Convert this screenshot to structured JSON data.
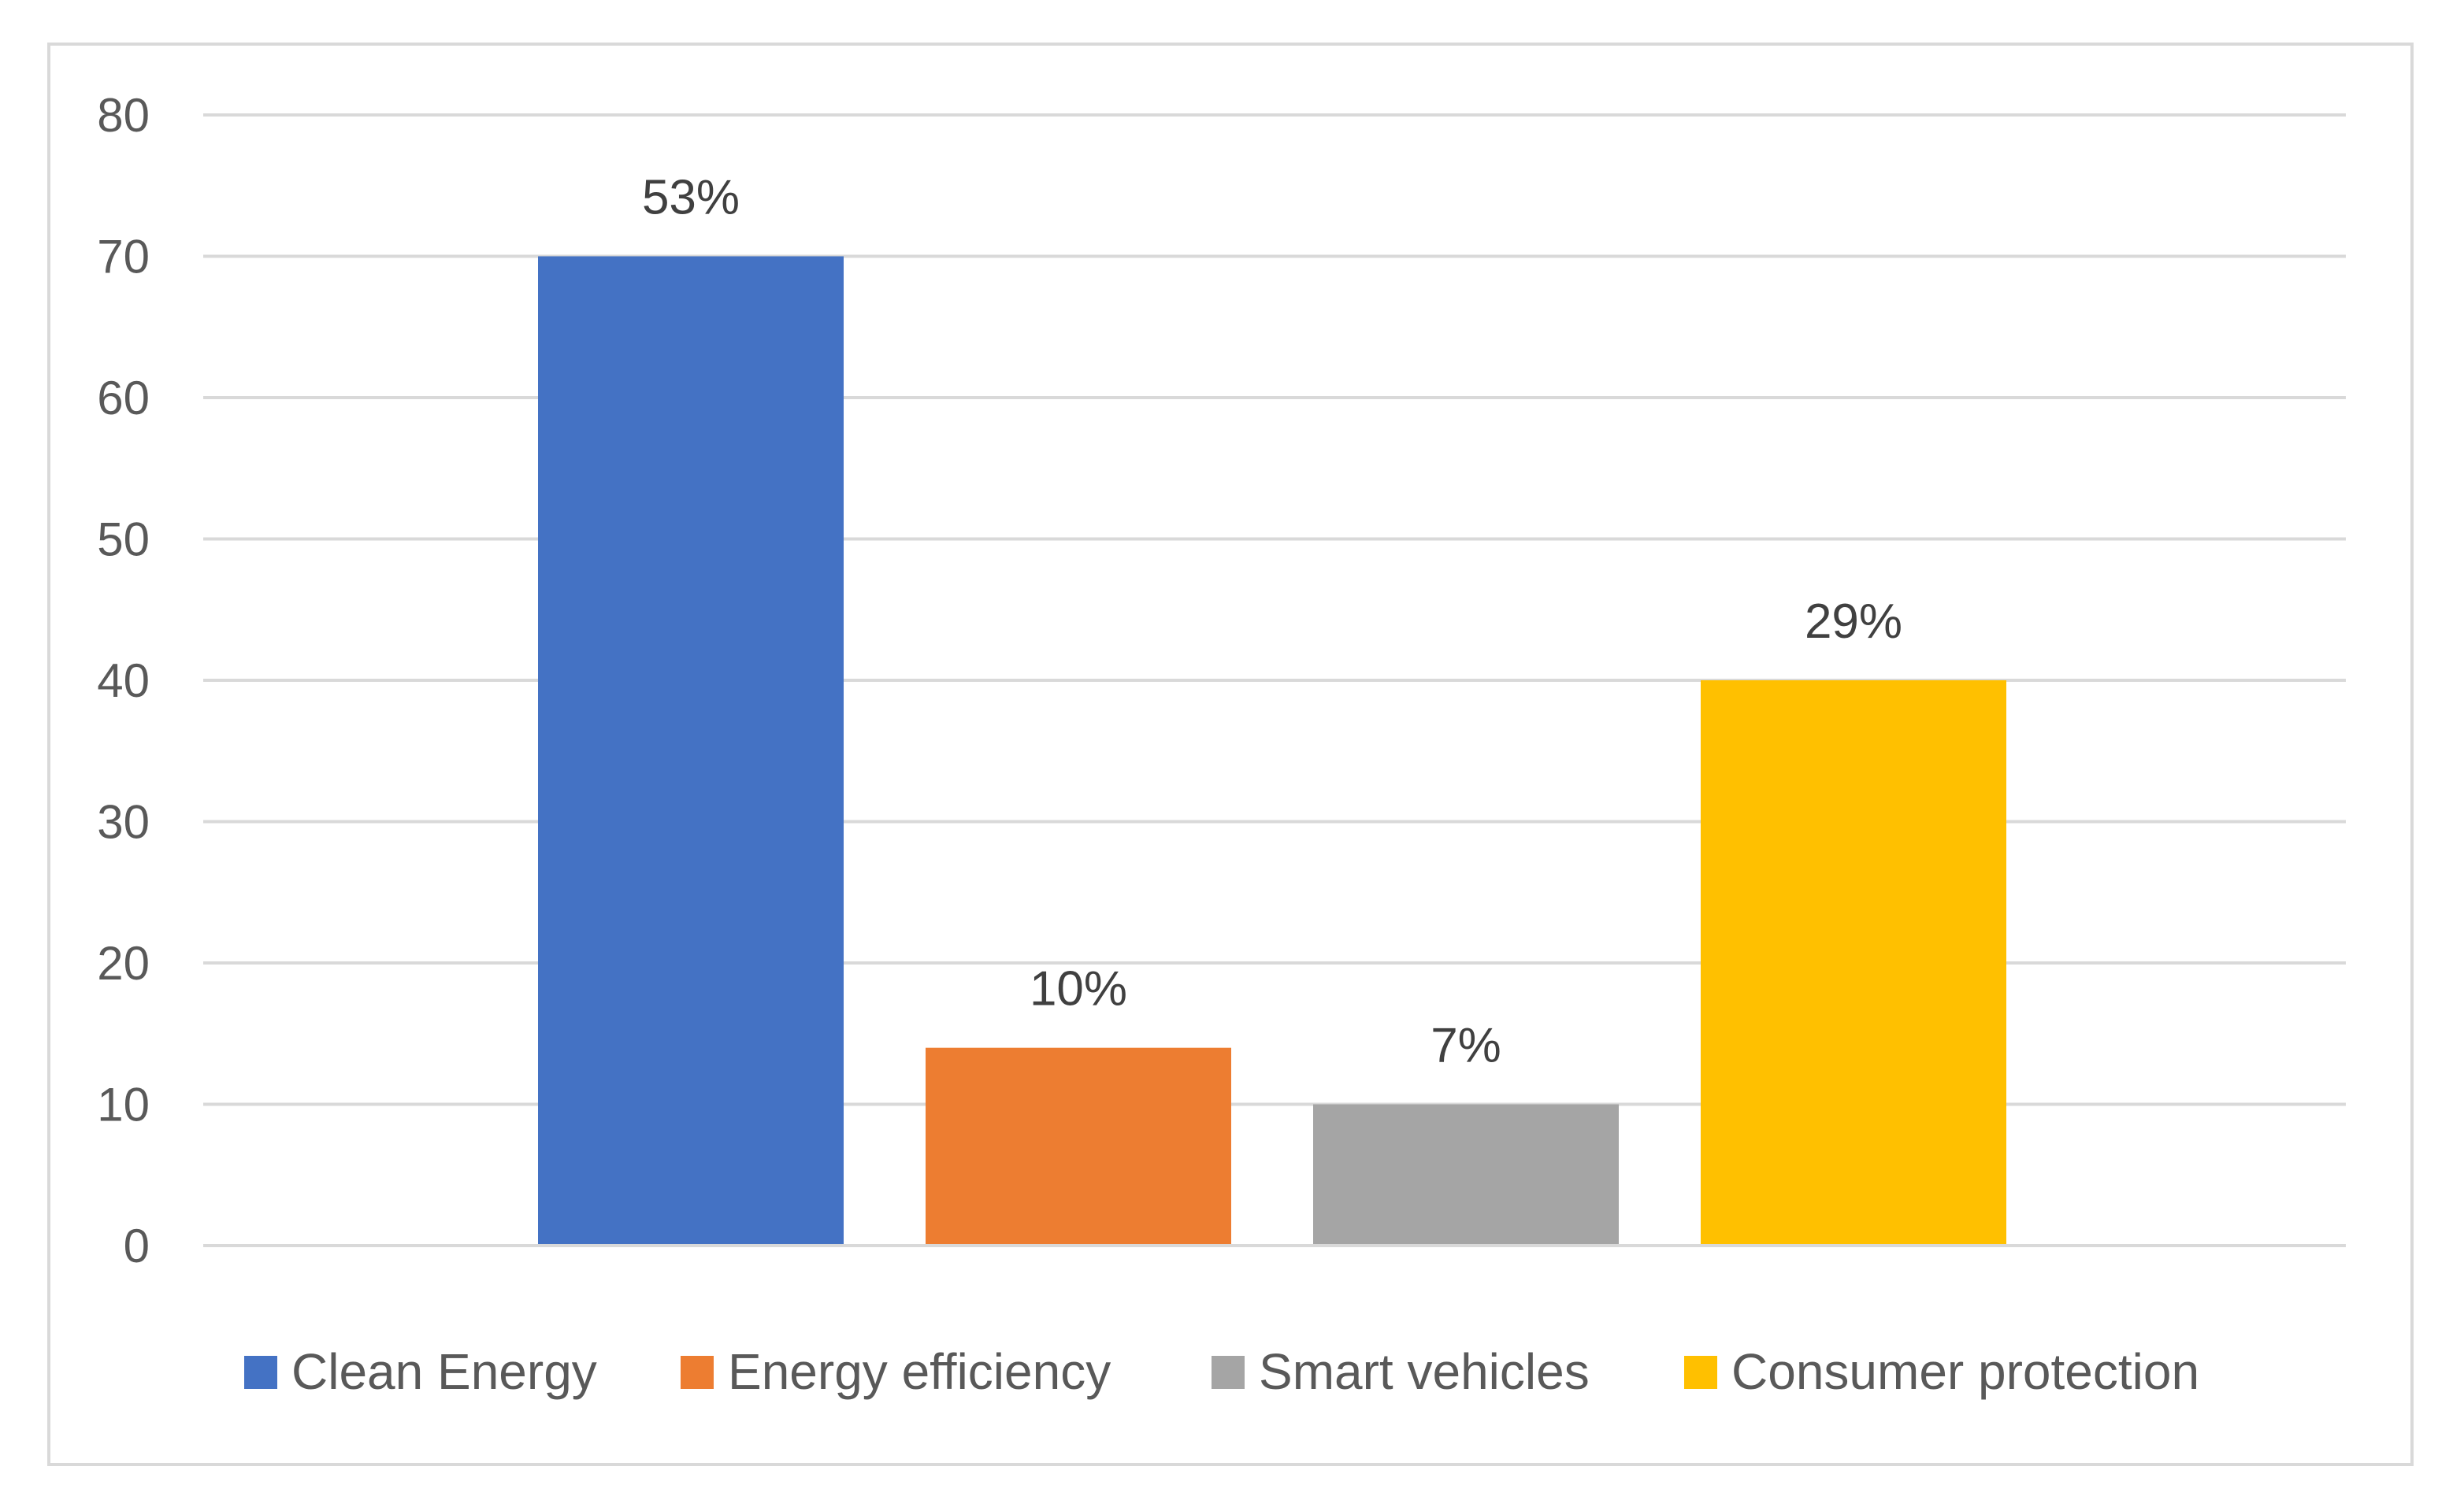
{
  "chart_data": {
    "type": "bar",
    "title": "",
    "xlabel": "",
    "ylabel": "",
    "ylim": [
      0,
      80
    ],
    "yticks": [
      0,
      10,
      20,
      30,
      40,
      50,
      60,
      70,
      80
    ],
    "grid": true,
    "legend_position": "bottom",
    "categories": [
      ""
    ],
    "series": [
      {
        "name": "Clean Energy",
        "values": [
          70
        ],
        "data_label": "53%",
        "color": "#4472C4"
      },
      {
        "name": "Energy efficiency",
        "values": [
          14
        ],
        "data_label": "10%",
        "color": "#ED7D31"
      },
      {
        "name": "Smart vehicles",
        "values": [
          10
        ],
        "data_label": "7%",
        "color": "#A5A5A5"
      },
      {
        "name": "Consumer protection",
        "values": [
          40
        ],
        "data_label": "29%",
        "color": "#FFC000"
      }
    ]
  }
}
